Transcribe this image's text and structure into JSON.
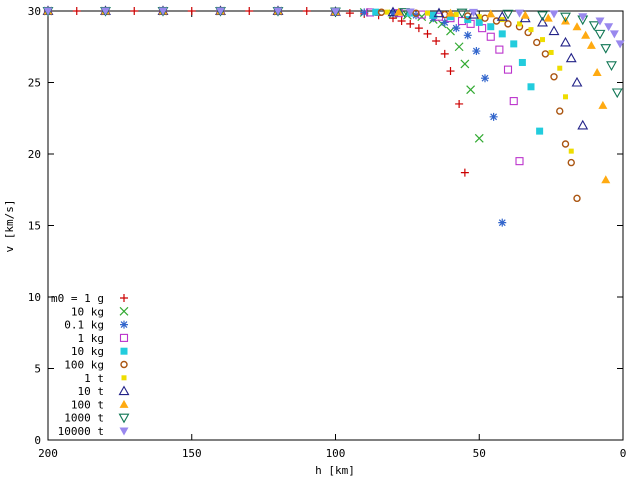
{
  "chart_data": {
    "type": "scatter",
    "title": "",
    "xlabel": "h [km]",
    "ylabel": "v [km/s]",
    "xlim": [
      200,
      0
    ],
    "ylim": [
      0,
      30
    ],
    "x_reversed": true,
    "x_ticks": [
      "200",
      "150",
      "100",
      "50",
      "0"
    ],
    "y_ticks": [
      "0",
      "5",
      "10",
      "15",
      "20",
      "25",
      "30"
    ],
    "grid": false,
    "legend_position": "bottom-left",
    "series": [
      {
        "name": "m0 = 1 g",
        "marker": "plus",
        "color": "#cc0000",
        "x": [
          200,
          190,
          180,
          170,
          160,
          150,
          140,
          130,
          120,
          110,
          100,
          95,
          90,
          85,
          80,
          77,
          74,
          71,
          68,
          65,
          62,
          60,
          57,
          55
        ],
        "y": [
          30,
          30,
          30,
          30,
          30,
          30,
          30,
          30,
          30,
          30,
          29.9,
          29.85,
          29.8,
          29.7,
          29.5,
          29.3,
          29.1,
          28.8,
          28.4,
          27.9,
          27.0,
          25.8,
          23.5,
          18.7
        ]
      },
      {
        "name": "10 kg",
        "marker": "cross",
        "color": "#33aa33",
        "x": [
          200,
          180,
          160,
          140,
          120,
          100,
          90,
          80,
          75,
          70,
          66,
          63,
          60,
          57,
          55,
          53,
          50
        ],
        "y": [
          30,
          30,
          30,
          30,
          30,
          29.95,
          29.9,
          29.8,
          29.7,
          29.6,
          29.4,
          29.1,
          28.6,
          27.5,
          26.3,
          24.5,
          21.1
        ]
      },
      {
        "name": "0.1 kg",
        "marker": "star",
        "color": "#3366cc",
        "x": [
          200,
          180,
          160,
          140,
          120,
          100,
          90,
          80,
          72,
          66,
          62,
          58,
          54,
          51,
          48,
          45,
          42
        ],
        "y": [
          30,
          30,
          30,
          30,
          30,
          29.95,
          29.9,
          29.85,
          29.7,
          29.5,
          29.2,
          28.8,
          28.3,
          27.2,
          25.3,
          22.6,
          15.2
        ]
      },
      {
        "name": "1 kg",
        "marker": "square-open",
        "color": "#bb33cc",
        "x": [
          200,
          180,
          160,
          140,
          120,
          100,
          88,
          78,
          70,
          64,
          60,
          56,
          53,
          49,
          46,
          43,
          40,
          38,
          36
        ],
        "y": [
          30,
          30,
          30,
          30,
          30,
          29.95,
          29.9,
          29.85,
          29.75,
          29.6,
          29.5,
          29.3,
          29.1,
          28.8,
          28.2,
          27.3,
          25.9,
          23.7,
          19.5
        ]
      },
      {
        "name": "10 kg",
        "marker": "square-filled",
        "color": "#22ccdd",
        "x": [
          200,
          180,
          160,
          140,
          120,
          100,
          86,
          74,
          66,
          60,
          54,
          50,
          46,
          42,
          38,
          35,
          32,
          29
        ],
        "y": [
          30,
          30,
          30,
          30,
          30,
          29.95,
          29.92,
          29.85,
          29.7,
          29.6,
          29.4,
          29.2,
          28.9,
          28.4,
          27.7,
          26.4,
          24.7,
          21.6
        ]
      },
      {
        "name": "100 kg",
        "marker": "circle-open",
        "color": "#aa5511",
        "x": [
          200,
          180,
          160,
          140,
          120,
          100,
          84,
          72,
          62,
          54,
          48,
          44,
          40,
          36,
          33,
          30,
          27,
          24,
          22,
          20,
          18,
          16
        ],
        "y": [
          30,
          30,
          30,
          30,
          30,
          29.95,
          29.92,
          29.85,
          29.75,
          29.65,
          29.5,
          29.3,
          29.1,
          28.9,
          28.5,
          27.8,
          27.0,
          25.4,
          23.0,
          20.7,
          19.4,
          16.9
        ]
      },
      {
        "name": "1 t",
        "marker": "square-small",
        "color": "#eedd00",
        "x": [
          200,
          180,
          160,
          140,
          120,
          100,
          82,
          68,
          58,
          50,
          42,
          36,
          32,
          28,
          25,
          22,
          20,
          18
        ],
        "y": [
          30,
          30,
          30,
          30,
          30,
          29.95,
          29.92,
          29.85,
          29.75,
          29.6,
          29.4,
          29.1,
          28.7,
          28.0,
          27.1,
          26.0,
          24.0,
          20.2
        ]
      },
      {
        "name": "10 t",
        "marker": "triangle-up-open",
        "color": "#222288",
        "x": [
          200,
          180,
          160,
          140,
          120,
          100,
          80,
          64,
          52,
          42,
          34,
          28,
          24,
          20,
          18,
          16,
          14
        ],
        "y": [
          30,
          30,
          30,
          30,
          30,
          29.95,
          29.92,
          29.85,
          29.75,
          29.6,
          29.5,
          29.2,
          28.6,
          27.8,
          26.7,
          25.0,
          22.0
        ]
      },
      {
        "name": "100 t",
        "marker": "triangle-up-filled",
        "color": "#ffaa11",
        "x": [
          200,
          180,
          160,
          140,
          120,
          100,
          78,
          60,
          46,
          34,
          26,
          20,
          16,
          13,
          11,
          9,
          7,
          6
        ],
        "y": [
          30,
          30,
          30,
          30,
          30,
          29.95,
          29.92,
          29.85,
          29.8,
          29.7,
          29.5,
          29.3,
          28.9,
          28.3,
          27.6,
          25.7,
          23.4,
          18.2
        ]
      },
      {
        "name": "1000 t",
        "marker": "triangle-down-open",
        "color": "#117755",
        "x": [
          200,
          180,
          160,
          140,
          120,
          100,
          76,
          56,
          40,
          28,
          20,
          14,
          10,
          8,
          6,
          4,
          2
        ],
        "y": [
          30,
          30,
          30,
          30,
          30,
          29.95,
          29.92,
          29.88,
          29.8,
          29.7,
          29.6,
          29.4,
          29.0,
          28.4,
          27.4,
          26.2,
          24.3
        ]
      },
      {
        "name": "10000 t",
        "marker": "triangle-down-filled",
        "color": "#9988ee",
        "x": [
          200,
          180,
          160,
          140,
          120,
          100,
          74,
          52,
          36,
          24,
          14,
          8,
          5,
          3,
          1
        ],
        "y": [
          30,
          30,
          30,
          30,
          30,
          29.96,
          29.93,
          29.9,
          29.85,
          29.8,
          29.6,
          29.3,
          28.9,
          28.4,
          27.7
        ]
      }
    ]
  }
}
